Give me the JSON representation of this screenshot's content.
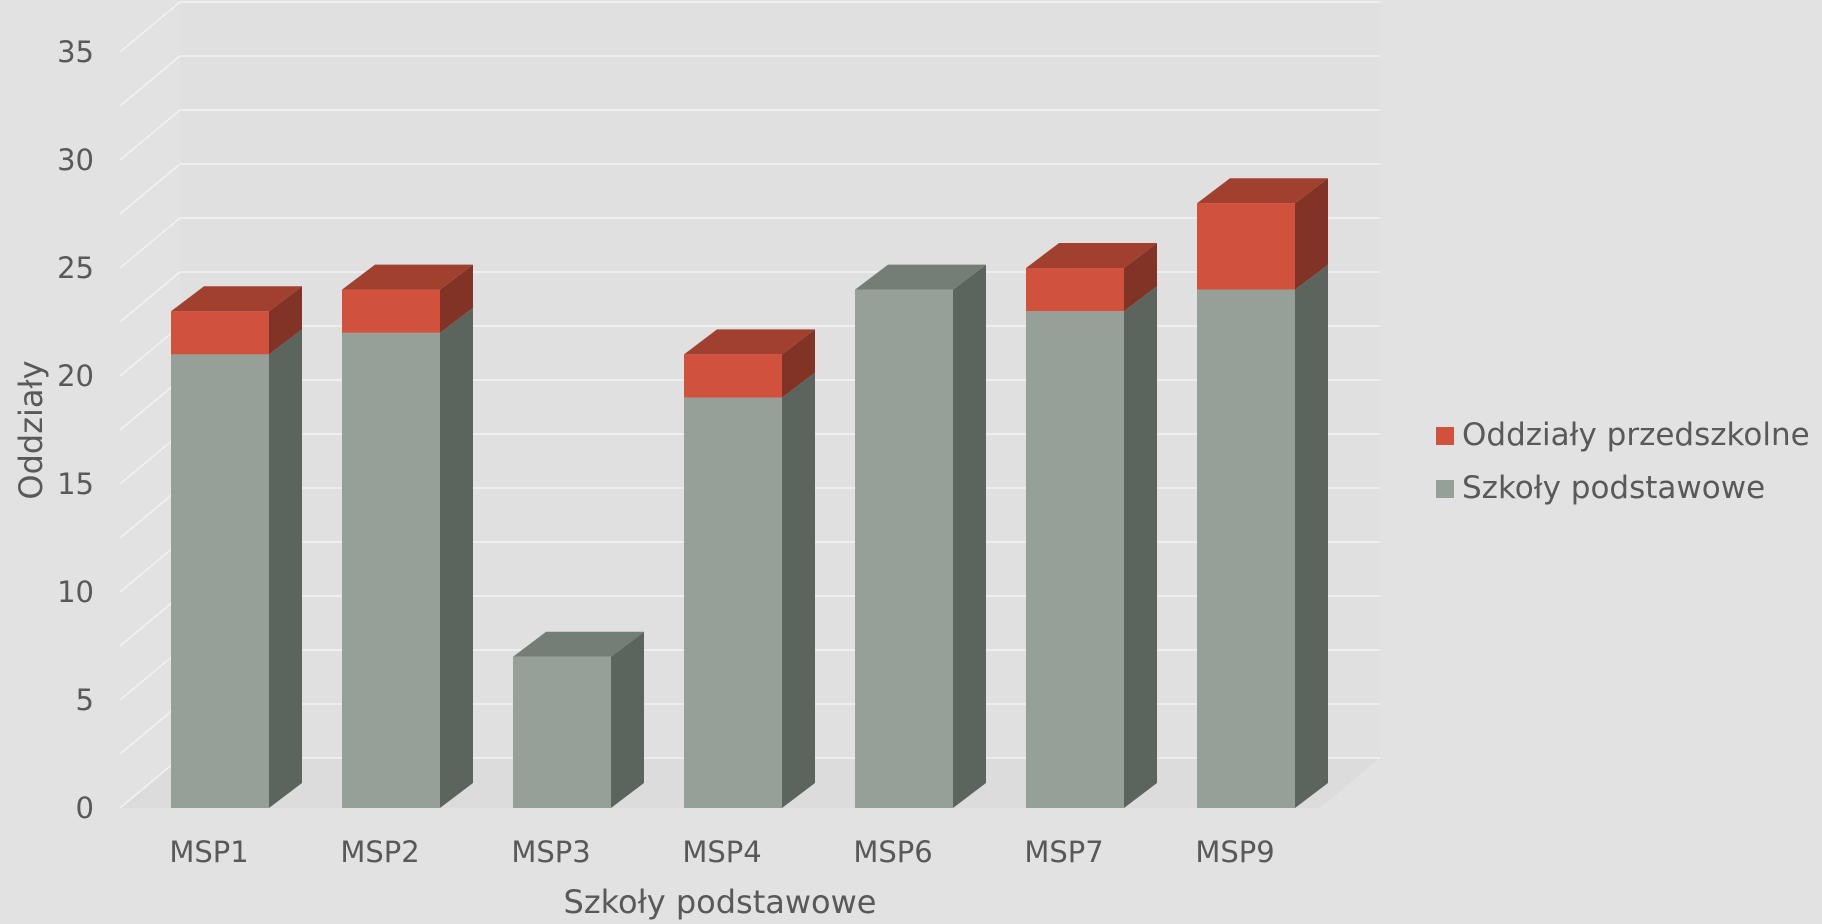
{
  "chart_data": {
    "type": "bar",
    "stacked": true,
    "three_d": true,
    "categories": [
      "MSP1",
      "MSP2",
      "MSP3",
      "MSP4",
      "MSP6",
      "MSP7",
      "MSP9"
    ],
    "series": [
      {
        "name": "Szkoły podstawowe",
        "values": [
          21,
          22,
          7,
          19,
          24,
          23,
          24
        ],
        "color": "#95a198"
      },
      {
        "name": "Oddziały przedszkolne",
        "values": [
          2,
          2,
          0,
          2,
          0,
          2,
          4
        ],
        "color": "#d0523c"
      }
    ],
    "title": "",
    "xlabel": "Szkoły podstawowe",
    "ylabel": "Oddziały",
    "ylim": [
      0,
      35
    ],
    "yticks": [
      0,
      5,
      10,
      15,
      20,
      25,
      30,
      35
    ],
    "grid": true,
    "legend_position": "right"
  }
}
